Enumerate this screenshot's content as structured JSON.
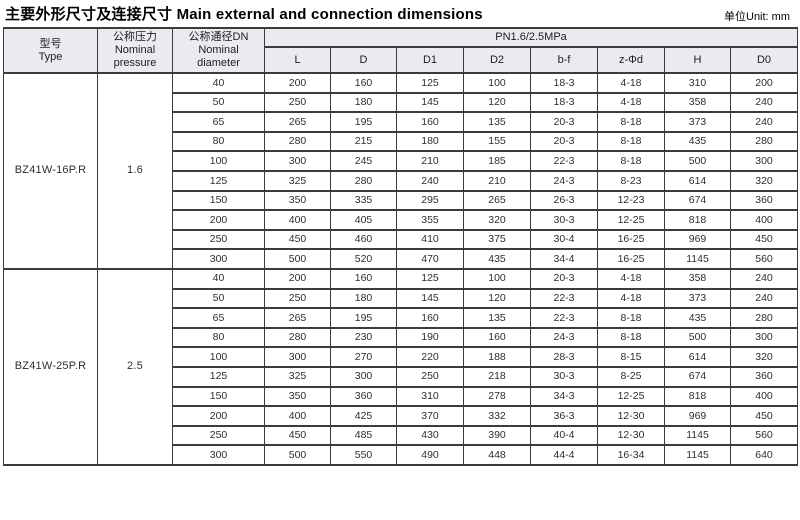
{
  "page": {
    "title": "主要外形尺寸及连接尺寸 Main external and connection dimensions",
    "unit": "单位Unit: mm"
  },
  "table": {
    "headers": {
      "type": "型号\nType",
      "pressure": "公称压力\nNominal\npressure",
      "diameter": "公称通径DN\nNominal\ndiameter",
      "pn": "PN1.6/2.5MPa",
      "columns": [
        "L",
        "D",
        "D1",
        "D2",
        "b-f",
        "z-Φd",
        "H",
        "D0"
      ]
    },
    "groups": [
      {
        "type": "BZ41W-16P.R",
        "pressure": "1.6",
        "rows": [
          [
            "40",
            "200",
            "160",
            "125",
            "100",
            "18-3",
            "4-18",
            "310",
            "200"
          ],
          [
            "50",
            "250",
            "180",
            "145",
            "120",
            "18-3",
            "4-18",
            "358",
            "240"
          ],
          [
            "65",
            "265",
            "195",
            "160",
            "135",
            "20-3",
            "8-18",
            "373",
            "240"
          ],
          [
            "80",
            "280",
            "215",
            "180",
            "155",
            "20-3",
            "8-18",
            "435",
            "280"
          ],
          [
            "100",
            "300",
            "245",
            "210",
            "185",
            "22-3",
            "8-18",
            "500",
            "300"
          ],
          [
            "125",
            "325",
            "280",
            "240",
            "210",
            "24-3",
            "8-23",
            "614",
            "320"
          ],
          [
            "150",
            "350",
            "335",
            "295",
            "265",
            "26-3",
            "12-23",
            "674",
            "360"
          ],
          [
            "200",
            "400",
            "405",
            "355",
            "320",
            "30-3",
            "12-25",
            "818",
            "400"
          ],
          [
            "250",
            "450",
            "460",
            "410",
            "375",
            "30-4",
            "16-25",
            "969",
            "450"
          ],
          [
            "300",
            "500",
            "520",
            "470",
            "435",
            "34-4",
            "16-25",
            "1145",
            "560"
          ]
        ]
      },
      {
        "type": "BZ41W-25P.R",
        "pressure": "2.5",
        "rows": [
          [
            "40",
            "200",
            "160",
            "125",
            "100",
            "20-3",
            "4-18",
            "358",
            "240"
          ],
          [
            "50",
            "250",
            "180",
            "145",
            "120",
            "22-3",
            "4-18",
            "373",
            "240"
          ],
          [
            "65",
            "265",
            "195",
            "160",
            "135",
            "22-3",
            "8-18",
            "435",
            "280"
          ],
          [
            "80",
            "280",
            "230",
            "190",
            "160",
            "24-3",
            "8-18",
            "500",
            "300"
          ],
          [
            "100",
            "300",
            "270",
            "220",
            "188",
            "28-3",
            "8-15",
            "614",
            "320"
          ],
          [
            "125",
            "325",
            "300",
            "250",
            "218",
            "30-3",
            "8-25",
            "674",
            "360"
          ],
          [
            "150",
            "350",
            "360",
            "310",
            "278",
            "34-3",
            "12-25",
            "818",
            "400"
          ],
          [
            "200",
            "400",
            "425",
            "370",
            "332",
            "36-3",
            "12-30",
            "969",
            "450"
          ],
          [
            "250",
            "450",
            "485",
            "430",
            "390",
            "40-4",
            "12-30",
            "1145",
            "560"
          ],
          [
            "300",
            "500",
            "550",
            "490",
            "448",
            "44-4",
            "16-34",
            "1145",
            "640"
          ]
        ]
      }
    ]
  }
}
